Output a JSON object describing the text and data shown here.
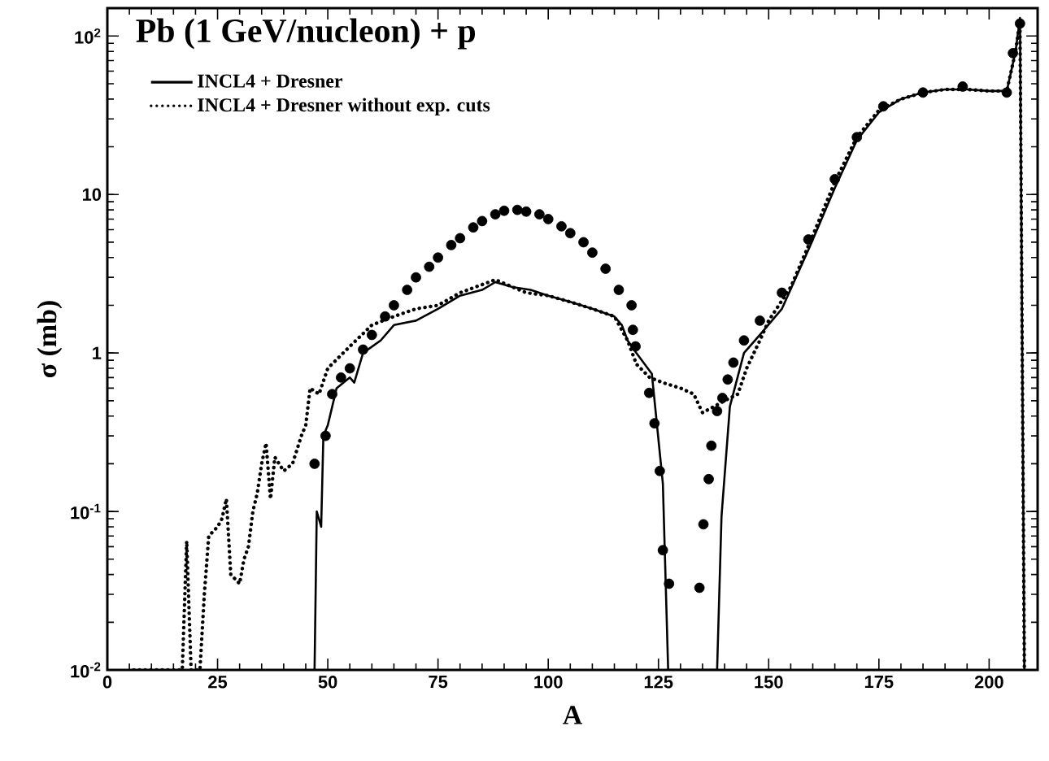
{
  "chart_data": {
    "type": "line",
    "title": "Pb (1 GeV/nucleon) + p",
    "xlabel": "A",
    "ylabel": "σ (mb)",
    "log": "y",
    "xlim": [
      0,
      211
    ],
    "ylim": [
      0.01,
      150
    ],
    "xticks": [
      0,
      25,
      50,
      75,
      100,
      125,
      150,
      175,
      200
    ],
    "yticks": [
      {
        "value": 0.01,
        "label": "10$^{-2}$"
      },
      {
        "value": 0.1,
        "label": "10$^{-1}$"
      },
      1,
      10,
      {
        "value": 100,
        "label": "10$^{2}$"
      }
    ],
    "legend": "top left",
    "grid": false,
    "series": [
      {
        "type": "scatter",
        "marker": "circle",
        "color": "#000000",
        "x": [
          47,
          49.5,
          51,
          53,
          55,
          58,
          60,
          63,
          65,
          68,
          70,
          73,
          75,
          78,
          80,
          83,
          85,
          88,
          90,
          93,
          95,
          98,
          100,
          103,
          105,
          108,
          110,
          113,
          116,
          118.9,
          119.2,
          119.8,
          122.9,
          124.1,
          125.3,
          126,
          127.4,
          134.3,
          135.2,
          136.4,
          137,
          138.3,
          139.5,
          140.7,
          142,
          144.4,
          148,
          153,
          159,
          165,
          170,
          176,
          185,
          194,
          204,
          205.4,
          207
        ],
        "values": [
          0.2,
          0.3,
          0.55,
          0.7,
          0.8,
          1.05,
          1.3,
          1.7,
          2.0,
          2.5,
          3.0,
          3.5,
          4.0,
          4.8,
          5.3,
          6.2,
          6.8,
          7.5,
          7.9,
          8.0,
          7.8,
          7.5,
          7.0,
          6.3,
          5.7,
          5.0,
          4.3,
          3.4,
          2.5,
          2.0,
          1.4,
          1.1,
          0.56,
          0.36,
          0.18,
          0.057,
          0.035,
          0.033,
          0.083,
          0.16,
          0.26,
          0.43,
          0.52,
          0.68,
          0.87,
          1.2,
          1.6,
          2.4,
          5.2,
          12.5,
          23,
          36,
          44,
          48,
          44,
          78,
          120
        ]
      },
      {
        "name": "INCL4 + Dresner",
        "marker": "none",
        "line_style": "solid",
        "color": "#000000",
        "x": [
          47,
          47.5,
          48.5,
          49,
          50,
          52,
          55,
          56,
          58,
          62,
          65,
          70,
          75,
          80,
          85,
          88,
          92,
          96,
          100,
          105,
          110,
          115,
          116.7,
          118,
          120,
          123.5,
          126,
          127.2,
          138.3,
          139.3,
          141.2,
          144.4,
          148,
          153,
          159.2,
          165,
          170,
          175,
          180,
          185,
          190,
          195,
          200,
          204,
          206,
          207,
          208
        ],
        "values": [
          0.01,
          0.1,
          0.08,
          0.3,
          0.35,
          0.6,
          0.7,
          0.65,
          1.0,
          1.2,
          1.5,
          1.6,
          1.9,
          2.3,
          2.5,
          2.8,
          2.6,
          2.5,
          2.3,
          2.1,
          1.9,
          1.7,
          1.5,
          1.2,
          1.0,
          0.74,
          0.15,
          0.01,
          0.01,
          0.093,
          0.46,
          1.0,
          1.3,
          1.9,
          4.6,
          11,
          22,
          33,
          40,
          44,
          46,
          46,
          45,
          45,
          80,
          130,
          0.01
        ]
      },
      {
        "name": "INCL4 + Dresner without exp. cuts",
        "marker": "none",
        "line_style": "dotted",
        "color": "#000000",
        "x": [
          6,
          12,
          16,
          17,
          18,
          19,
          21,
          22,
          23,
          25,
          26,
          27,
          28,
          30,
          31,
          32,
          33,
          34,
          35,
          36,
          37,
          38,
          40,
          42,
          44,
          45,
          46,
          48,
          50,
          55,
          60,
          65,
          70,
          75,
          80,
          88,
          95,
          100,
          105,
          110,
          115,
          118,
          120,
          123,
          126,
          130,
          133,
          135,
          137,
          140,
          143,
          145,
          148,
          150,
          155,
          160,
          165,
          170,
          175,
          180,
          185,
          190,
          195,
          200,
          204,
          206,
          207,
          208
        ],
        "values": [
          0.01,
          0.01,
          0.01,
          0.01,
          0.065,
          0.01,
          0.01,
          0.03,
          0.07,
          0.08,
          0.09,
          0.12,
          0.04,
          0.035,
          0.05,
          0.06,
          0.1,
          0.13,
          0.2,
          0.27,
          0.12,
          0.22,
          0.18,
          0.2,
          0.3,
          0.35,
          0.6,
          0.55,
          0.8,
          1.1,
          1.5,
          1.7,
          1.9,
          2.0,
          2.4,
          2.9,
          2.4,
          2.3,
          2.1,
          1.9,
          1.7,
          1.2,
          0.85,
          0.7,
          0.65,
          0.6,
          0.55,
          0.42,
          0.45,
          0.5,
          0.55,
          0.8,
          1.2,
          1.6,
          2.6,
          5.5,
          12,
          23,
          34,
          40,
          44,
          46,
          46,
          45,
          45,
          80,
          125,
          0.01
        ]
      }
    ]
  }
}
